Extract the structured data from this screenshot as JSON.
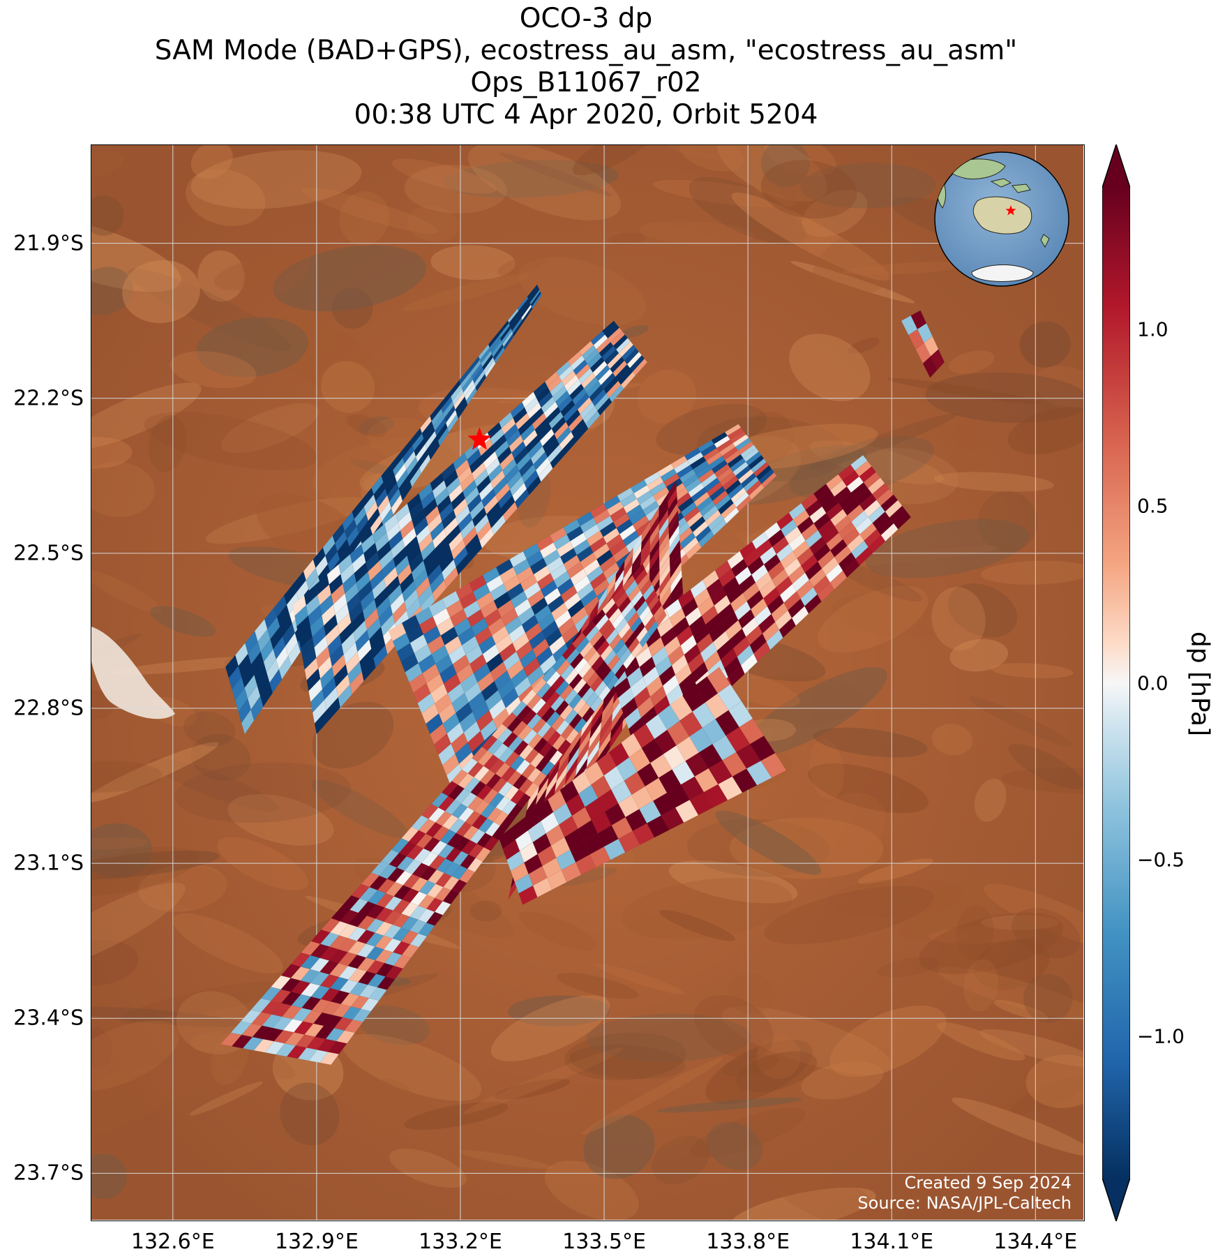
{
  "title": {
    "line1": "OCO-3 dp",
    "line2": "SAM Mode (BAD+GPS), ecostress_au_asm, \"ecostress_au_asm\"",
    "line3": "Ops_B11067_r02",
    "line4": "00:38 UTC 4 Apr 2020, Orbit 5204"
  },
  "map": {
    "lon_range": [
      132.43,
      134.5
    ],
    "lat_range": [
      -23.79,
      -21.71
    ],
    "lat_ticks": [
      {
        "value": -21.9,
        "label": "21.9°S"
      },
      {
        "value": -22.2,
        "label": "22.2°S"
      },
      {
        "value": -22.5,
        "label": "22.5°S"
      },
      {
        "value": -22.8,
        "label": "22.8°S"
      },
      {
        "value": -23.1,
        "label": "23.1°S"
      },
      {
        "value": -23.4,
        "label": "23.4°S"
      },
      {
        "value": -23.7,
        "label": "23.7°S"
      }
    ],
    "lon_ticks": [
      {
        "value": 132.6,
        "label": "132.6°E"
      },
      {
        "value": 132.9,
        "label": "132.9°E"
      },
      {
        "value": 133.2,
        "label": "133.2°E"
      },
      {
        "value": 133.5,
        "label": "133.5°E"
      },
      {
        "value": 133.8,
        "label": "133.8°E"
      },
      {
        "value": 134.1,
        "label": "134.1°E"
      },
      {
        "value": 134.4,
        "label": "134.4°E"
      }
    ],
    "target": {
      "lon": 133.24,
      "lat": -22.28,
      "marker": "red-star"
    },
    "basemap": "satellite-imagery-central-australia-desert",
    "inset_globe": "globe-australia-with-target-star"
  },
  "chart_data": {
    "type": "heatmap",
    "variable": "dp",
    "colorbar_label": "dp [hPa]",
    "colorbar_range": [
      -1.4,
      1.4
    ],
    "colorbar_extend": "both",
    "colormap": "RdBu_r",
    "colorbar_ticks": [
      {
        "value": 1.0,
        "label": "1.0"
      },
      {
        "value": 0.5,
        "label": "0.5"
      },
      {
        "value": 0.0,
        "label": "0.0"
      },
      {
        "value": -0.5,
        "label": "−0.5"
      },
      {
        "value": -1.0,
        "label": "−1.0"
      }
    ],
    "swaths": [
      {
        "corners": [
          [
            132.71,
            -22.72
          ],
          [
            132.75,
            -22.85
          ],
          [
            133.37,
            -22.0
          ],
          [
            133.36,
            -21.98
          ]
        ],
        "mean": -1.0
      },
      {
        "corners": [
          [
            132.85,
            -22.6
          ],
          [
            132.9,
            -22.85
          ],
          [
            133.59,
            -22.13
          ],
          [
            133.52,
            -22.05
          ]
        ],
        "mean": -0.7
      },
      {
        "corners": [
          [
            133.05,
            -22.65
          ],
          [
            133.18,
            -22.95
          ],
          [
            133.86,
            -22.35
          ],
          [
            133.78,
            -22.25
          ]
        ],
        "mean": -0.3
      },
      {
        "corners": [
          [
            133.4,
            -22.72
          ],
          [
            133.3,
            -23.17
          ],
          [
            133.67,
            -22.66
          ],
          [
            133.65,
            -22.36
          ]
        ],
        "mean": 0.9
      },
      {
        "corners": [
          [
            133.5,
            -22.7
          ],
          [
            133.58,
            -22.92
          ],
          [
            134.14,
            -22.43
          ],
          [
            134.04,
            -22.31
          ]
        ],
        "mean": 0.8
      },
      {
        "corners": [
          [
            133.28,
            -23.05
          ],
          [
            133.33,
            -23.18
          ],
          [
            133.88,
            -22.92
          ],
          [
            133.74,
            -22.72
          ]
        ],
        "mean": 0.7
      },
      {
        "corners": [
          [
            132.7,
            -23.45
          ],
          [
            132.93,
            -23.49
          ],
          [
            133.63,
            -22.62
          ],
          [
            133.58,
            -22.52
          ]
        ],
        "mean": 0.4
      },
      {
        "corners": [
          [
            134.12,
            -22.05
          ],
          [
            134.16,
            -22.03
          ],
          [
            134.21,
            -22.13
          ],
          [
            134.18,
            -22.16
          ]
        ],
        "mean": 0.6
      }
    ]
  },
  "credits": {
    "created": "Created 9 Sep 2024",
    "source": "Source: NASA/JPL-Caltech"
  }
}
